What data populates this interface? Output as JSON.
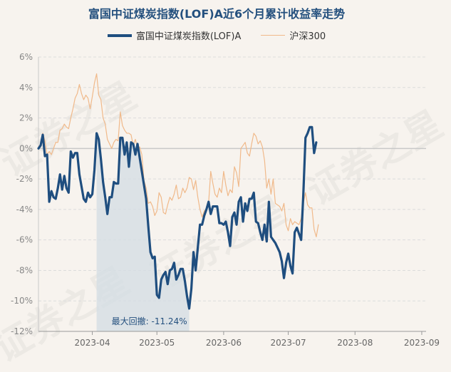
{
  "watermark": "证券之星",
  "chart_data": {
    "type": "line",
    "title": "富国中证煤炭指数(LOF)A近6个月累计收益率走势",
    "y_axis": {
      "min": -12,
      "max": 6,
      "step": 2,
      "unit": "%",
      "tick_labels": [
        "6%",
        "4%",
        "2%",
        "0%",
        "-2%",
        "-4%",
        "-6%",
        "-8%",
        "-10%",
        "-12%"
      ]
    },
    "x_axis": {
      "min": 0,
      "max": 180,
      "ticks": [
        {
          "label": "2023-04",
          "x": 25
        },
        {
          "label": "2023-05",
          "x": 55
        },
        {
          "label": "2023-06",
          "x": 86
        },
        {
          "label": "2023-07",
          "x": 116
        },
        {
          "label": "2023-08",
          "x": 147
        },
        {
          "label": "2023-09",
          "x": 178
        }
      ]
    },
    "series": [
      {
        "name": "富国中证煤炭指数(LOF)A",
        "color": "#1f4e7f",
        "points": [
          [
            0,
            0
          ],
          [
            1,
            0.2
          ],
          [
            2,
            0.9
          ],
          [
            3,
            -0.5
          ],
          [
            4,
            -0.4
          ],
          [
            5,
            -3.5
          ],
          [
            6,
            -2.8
          ],
          [
            7,
            -3.2
          ],
          [
            8,
            -3.3
          ],
          [
            9,
            -2.6
          ],
          [
            10,
            -1.7
          ],
          [
            11,
            -2.7
          ],
          [
            12,
            -1.8
          ],
          [
            13,
            -2.6
          ],
          [
            14,
            -2.9
          ],
          [
            15,
            -0.2
          ],
          [
            16,
            -0.6
          ],
          [
            17,
            -0.3
          ],
          [
            18,
            -0.3
          ],
          [
            19,
            -1.7
          ],
          [
            20,
            -2.5
          ],
          [
            21,
            -3.3
          ],
          [
            22,
            -3.5
          ],
          [
            23,
            -2.9
          ],
          [
            24,
            -3.2
          ],
          [
            25,
            -3.0
          ],
          [
            26,
            -1.4
          ],
          [
            27,
            1.0
          ],
          [
            28,
            0.6
          ],
          [
            29,
            -0.7
          ],
          [
            30,
            -2.2
          ],
          [
            31,
            -3.2
          ],
          [
            32,
            -4.3
          ],
          [
            33,
            -3.2
          ],
          [
            34,
            -3.2
          ],
          [
            35,
            -2.2
          ],
          [
            36,
            -2.3
          ],
          [
            37,
            -2.3
          ],
          [
            38,
            0.7
          ],
          [
            39,
            0.7
          ],
          [
            40,
            -0.4
          ],
          [
            41,
            0.4
          ],
          [
            42,
            -1.2
          ],
          [
            43,
            0.4
          ],
          [
            44,
            0.3
          ],
          [
            45,
            -0.4
          ],
          [
            46,
            0.3
          ],
          [
            47,
            -0.6
          ],
          [
            48,
            -1.5
          ],
          [
            49,
            -2.4
          ],
          [
            50,
            -3.3
          ],
          [
            51,
            -5.1
          ],
          [
            52,
            -6.8
          ],
          [
            53,
            -7.2
          ],
          [
            54,
            -7.1
          ],
          [
            55,
            -9.6
          ],
          [
            56,
            -9.8
          ],
          [
            57,
            -8.6
          ],
          [
            58,
            -8.3
          ],
          [
            59,
            -8.1
          ],
          [
            60,
            -8.9
          ],
          [
            61,
            -8.0
          ],
          [
            62,
            -7.9
          ],
          [
            63,
            -7.5
          ],
          [
            64,
            -8.6
          ],
          [
            65,
            -8.3
          ],
          [
            66,
            -7.9
          ],
          [
            67,
            -7.9
          ],
          [
            68,
            -8.7
          ],
          [
            69,
            -9.7
          ],
          [
            70,
            -10.5
          ],
          [
            71,
            -9.2
          ],
          [
            72,
            -6.8
          ],
          [
            73,
            -8.0
          ],
          [
            74,
            -6.5
          ],
          [
            75,
            -5.0
          ],
          [
            76,
            -5.0
          ],
          [
            77,
            -4.4
          ],
          [
            78,
            -4.0
          ],
          [
            79,
            -3.5
          ],
          [
            80,
            -4.3
          ],
          [
            81,
            -3.8
          ],
          [
            82,
            -3.8
          ],
          [
            83,
            -3.8
          ],
          [
            84,
            -4.9
          ],
          [
            85,
            -4.9
          ],
          [
            86,
            -5.0
          ],
          [
            87,
            -4.8
          ],
          [
            88,
            -5.5
          ],
          [
            89,
            -6.4
          ],
          [
            90,
            -4.5
          ],
          [
            91,
            -4.2
          ],
          [
            92,
            -5.0
          ],
          [
            93,
            -3.5
          ],
          [
            94,
            -3.2
          ],
          [
            95,
            -4.8
          ],
          [
            96,
            -3.6
          ],
          [
            97,
            -4.1
          ],
          [
            98,
            -3.3
          ],
          [
            99,
            -3.3
          ],
          [
            100,
            -2.9
          ],
          [
            101,
            -4.8
          ],
          [
            102,
            -4.9
          ],
          [
            103,
            -5.5
          ],
          [
            104,
            -6.0
          ],
          [
            105,
            -5.0
          ],
          [
            106,
            -6.1
          ],
          [
            107,
            -3.5
          ],
          [
            108,
            -5.8
          ],
          [
            109,
            -6.0
          ],
          [
            110,
            -6.2
          ],
          [
            111,
            -6.5
          ],
          [
            112,
            -6.8
          ],
          [
            113,
            -7.4
          ],
          [
            114,
            -8.5
          ],
          [
            115,
            -7.5
          ],
          [
            116,
            -6.9
          ],
          [
            117,
            -7.7
          ],
          [
            118,
            -8.2
          ],
          [
            119,
            -5.5
          ],
          [
            120,
            -5.2
          ],
          [
            121,
            -5.6
          ],
          [
            122,
            -6.0
          ],
          [
            123,
            -3.0
          ],
          [
            124,
            0.7
          ],
          [
            125,
            1.0
          ],
          [
            126,
            1.4
          ],
          [
            127,
            1.4
          ],
          [
            128,
            -0.3
          ],
          [
            129,
            0.4
          ]
        ]
      },
      {
        "name": "沪深300",
        "color": "#f0b98a",
        "points": [
          [
            0,
            0.1
          ],
          [
            1,
            0.3
          ],
          [
            2,
            1.0
          ],
          [
            3,
            0.5
          ],
          [
            4,
            -0.4
          ],
          [
            5,
            -0.2
          ],
          [
            6,
            -0.4
          ],
          [
            7,
            0.0
          ],
          [
            8,
            0.4
          ],
          [
            9,
            0.4
          ],
          [
            10,
            1.2
          ],
          [
            11,
            1.3
          ],
          [
            12,
            1.6
          ],
          [
            13,
            1.4
          ],
          [
            14,
            1.3
          ],
          [
            15,
            2.0
          ],
          [
            16,
            2.6
          ],
          [
            17,
            3.3
          ],
          [
            18,
            3.6
          ],
          [
            19,
            4.2
          ],
          [
            20,
            3.6
          ],
          [
            21,
            3.2
          ],
          [
            22,
            3.5
          ],
          [
            23,
            3.3
          ],
          [
            24,
            2.6
          ],
          [
            25,
            3.4
          ],
          [
            26,
            4.3
          ],
          [
            27,
            4.9
          ],
          [
            28,
            3.5
          ],
          [
            29,
            3.2
          ],
          [
            30,
            2.0
          ],
          [
            31,
            1.6
          ],
          [
            32,
            0.6
          ],
          [
            33,
            0.3
          ],
          [
            34,
            0.0
          ],
          [
            35,
            0.4
          ],
          [
            36,
            0.6
          ],
          [
            37,
            0.5
          ],
          [
            38,
            2.4
          ],
          [
            39,
            1.5
          ],
          [
            40,
            1.2
          ],
          [
            41,
            1.0
          ],
          [
            42,
            1.0
          ],
          [
            43,
            0.9
          ],
          [
            44,
            0.2
          ],
          [
            45,
            0.6
          ],
          [
            46,
            0.0
          ],
          [
            47,
            0.1
          ],
          [
            48,
            -0.4
          ],
          [
            49,
            -2.1
          ],
          [
            50,
            -2.6
          ],
          [
            51,
            -3.6
          ],
          [
            52,
            -3.5
          ],
          [
            53,
            -3.8
          ],
          [
            54,
            -4.4
          ],
          [
            55,
            -4.1
          ],
          [
            56,
            -2.9
          ],
          [
            57,
            -3.2
          ],
          [
            58,
            -4.2
          ],
          [
            59,
            -4.3
          ],
          [
            60,
            -3.7
          ],
          [
            61,
            -3.2
          ],
          [
            62,
            -3.4
          ],
          [
            63,
            -3.0
          ],
          [
            64,
            -2.4
          ],
          [
            65,
            -3.3
          ],
          [
            66,
            -3.2
          ],
          [
            67,
            -2.6
          ],
          [
            68,
            -2.9
          ],
          [
            69,
            -2.6
          ],
          [
            70,
            -1.9
          ],
          [
            71,
            -2.0
          ],
          [
            72,
            -2.7
          ],
          [
            73,
            -2.1
          ],
          [
            74,
            -3.2
          ],
          [
            75,
            -4.0
          ],
          [
            76,
            -4.5
          ],
          [
            77,
            -4.1
          ],
          [
            78,
            -4.0
          ],
          [
            79,
            -3.6
          ],
          [
            80,
            -1.5
          ],
          [
            81,
            -2.3
          ],
          [
            82,
            -3.0
          ],
          [
            83,
            -3.2
          ],
          [
            84,
            -2.6
          ],
          [
            85,
            -2.9
          ],
          [
            86,
            -1.5
          ],
          [
            87,
            -2.4
          ],
          [
            88,
            -3.1
          ],
          [
            89,
            -2.7
          ],
          [
            90,
            -2.9
          ],
          [
            91,
            -1.2
          ],
          [
            92,
            -1.6
          ],
          [
            93,
            -2.5
          ],
          [
            94,
            0.0
          ],
          [
            95,
            0.2
          ],
          [
            96,
            0.4
          ],
          [
            97,
            -0.3
          ],
          [
            98,
            -0.5
          ],
          [
            99,
            0.3
          ],
          [
            100,
            1.0
          ],
          [
            101,
            0.8
          ],
          [
            102,
            0.3
          ],
          [
            103,
            0.5
          ],
          [
            104,
            0.1
          ],
          [
            105,
            -0.8
          ],
          [
            106,
            -2.6
          ],
          [
            107,
            -2.0
          ],
          [
            108,
            -3.0
          ],
          [
            109,
            -2.0
          ],
          [
            110,
            -3.6
          ],
          [
            111,
            -3.7
          ],
          [
            112,
            -3.8
          ],
          [
            113,
            -4.1
          ],
          [
            114,
            -3.6
          ],
          [
            115,
            -5.0
          ],
          [
            116,
            -5.4
          ],
          [
            117,
            -4.6
          ],
          [
            118,
            -5.0
          ],
          [
            119,
            -4.8
          ],
          [
            120,
            -4.9
          ],
          [
            121,
            -5.0
          ],
          [
            122,
            -4.6
          ],
          [
            123,
            -3.6
          ],
          [
            124,
            -2.9
          ],
          [
            125,
            -3.7
          ],
          [
            126,
            -3.9
          ],
          [
            127,
            -3.9
          ],
          [
            128,
            -5.3
          ],
          [
            129,
            -5.8
          ],
          [
            130,
            -5.0
          ]
        ]
      }
    ],
    "drawdown": {
      "label": "最大回撤: -11.24%",
      "x_start": 27,
      "x_end": 70,
      "color": "#d5dde4"
    }
  }
}
